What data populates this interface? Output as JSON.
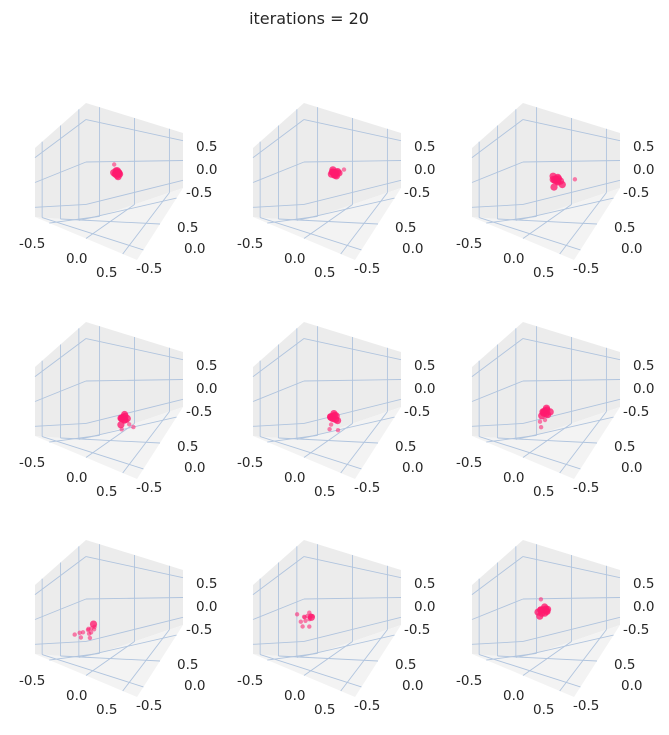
{
  "figure": {
    "suptitle": "iterations = 20",
    "marker_color": "#ff1a6e",
    "pane_color": "#ececec",
    "grid_color": "#b0c4de"
  },
  "chart_data": [
    {
      "type": "scatter",
      "subplot": 1,
      "xticks": [
        "-0.5",
        "0.0",
        "0.5"
      ],
      "yticks": [
        "0.5",
        "0.0",
        "-0.5"
      ],
      "zticks": [
        "0.5",
        "0.0",
        "-0.5"
      ],
      "xlim": [
        -0.8,
        0.8
      ],
      "ylim": [
        -0.8,
        0.8
      ],
      "zlim": [
        -0.8,
        0.8
      ],
      "grid": true,
      "points": [
        {
          "x": 0.02,
          "y": -0.02,
          "z": 0.0
        },
        {
          "x": 0.04,
          "y": 0.0,
          "z": 0.03
        },
        {
          "x": -0.01,
          "y": 0.02,
          "z": -0.02
        },
        {
          "x": 0.06,
          "y": -0.03,
          "z": -0.03
        },
        {
          "x": 0.0,
          "y": 0.04,
          "z": 0.05
        },
        {
          "x": 0.05,
          "y": 0.03,
          "z": -0.01
        },
        {
          "x": -0.02,
          "y": -0.05,
          "z": 0.02
        },
        {
          "x": 0.03,
          "y": 0.05,
          "z": 0.01
        },
        {
          "x": 0.07,
          "y": 0.01,
          "z": 0.04
        },
        {
          "x": -0.1,
          "y": 0.05,
          "z": 0.18
        },
        {
          "x": 0.08,
          "y": -0.02,
          "z": -0.06
        },
        {
          "x": 0.01,
          "y": -0.01,
          "z": 0.07
        },
        {
          "x": 0.04,
          "y": 0.07,
          "z": -0.04
        },
        {
          "x": -0.03,
          "y": 0.01,
          "z": -0.05
        }
      ]
    },
    {
      "type": "scatter",
      "subplot": 2,
      "xticks": [
        "-0.5",
        "0.0",
        "0.5"
      ],
      "yticks": [
        "0.5",
        "0.0",
        "-0.5"
      ],
      "zticks": [
        "0.5",
        "0.0",
        "-0.5"
      ],
      "xlim": [
        -0.8,
        0.8
      ],
      "ylim": [
        -0.8,
        0.8
      ],
      "zlim": [
        -0.8,
        0.8
      ],
      "grid": true,
      "points": [
        {
          "x": 0.0,
          "y": 0.0,
          "z": 0.0
        },
        {
          "x": 0.03,
          "y": 0.02,
          "z": 0.03
        },
        {
          "x": -0.03,
          "y": -0.02,
          "z": 0.02
        },
        {
          "x": 0.05,
          "y": -0.04,
          "z": -0.02
        },
        {
          "x": -0.02,
          "y": 0.05,
          "z": -0.03
        },
        {
          "x": 0.06,
          "y": 0.05,
          "z": 0.05
        },
        {
          "x": -0.05,
          "y": 0.02,
          "z": 0.06
        },
        {
          "x": 0.02,
          "y": -0.06,
          "z": 0.06
        },
        {
          "x": 0.07,
          "y": 0.0,
          "z": -0.05
        },
        {
          "x": -0.04,
          "y": -0.04,
          "z": -0.04
        },
        {
          "x": 0.2,
          "y": 0.1,
          "z": 0.16
        },
        {
          "x": 0.01,
          "y": 0.03,
          "z": -0.07
        },
        {
          "x": 0.08,
          "y": 0.07,
          "z": 0.01
        }
      ]
    },
    {
      "type": "scatter",
      "subplot": 3,
      "xticks": [
        "-0.5",
        "0.0",
        "0.5"
      ],
      "yticks": [
        "0.5",
        "0.0",
        "-0.5"
      ],
      "zticks": [
        "0.5",
        "0.0",
        "-0.5"
      ],
      "xlim": [
        -0.8,
        0.8
      ],
      "ylim": [
        -0.8,
        0.8
      ],
      "zlim": [
        -0.8,
        0.8
      ],
      "grid": true,
      "points": [
        {
          "x": 0.15,
          "y": -0.05,
          "z": -0.1
        },
        {
          "x": 0.18,
          "y": -0.02,
          "z": -0.07
        },
        {
          "x": 0.12,
          "y": -0.08,
          "z": -0.12
        },
        {
          "x": 0.2,
          "y": -0.06,
          "z": -0.14
        },
        {
          "x": 0.14,
          "y": 0.0,
          "z": -0.06
        },
        {
          "x": 0.22,
          "y": -0.1,
          "z": -0.09
        },
        {
          "x": 0.1,
          "y": -0.03,
          "z": -0.15
        },
        {
          "x": 0.17,
          "y": -0.09,
          "z": -0.05
        },
        {
          "x": 0.24,
          "y": -0.02,
          "z": -0.11
        },
        {
          "x": 0.12,
          "y": -0.12,
          "z": -0.08
        },
        {
          "x": 0.55,
          "y": 0.1,
          "z": 0.05
        },
        {
          "x": 0.32,
          "y": -0.05,
          "z": -0.16
        },
        {
          "x": 0.2,
          "y": -0.18,
          "z": -0.24
        },
        {
          "x": 0.05,
          "y": -0.05,
          "z": -0.05
        }
      ]
    },
    {
      "type": "scatter",
      "subplot": 4,
      "xticks": [
        "-0.5",
        "0.0",
        "0.5"
      ],
      "yticks": [
        "0.5",
        "0.0",
        "-0.5"
      ],
      "zticks": [
        "0.5",
        "0.0",
        "-0.5"
      ],
      "xlim": [
        -0.8,
        0.8
      ],
      "ylim": [
        -0.8,
        0.8
      ],
      "zlim": [
        -0.8,
        0.8
      ],
      "grid": true,
      "points": [
        {
          "x": 0.3,
          "y": -0.1,
          "z": -0.55
        },
        {
          "x": 0.33,
          "y": -0.07,
          "z": -0.52
        },
        {
          "x": 0.27,
          "y": -0.13,
          "z": -0.58
        },
        {
          "x": 0.36,
          "y": -0.12,
          "z": -0.6
        },
        {
          "x": 0.29,
          "y": -0.04,
          "z": -0.5
        },
        {
          "x": 0.4,
          "y": -0.15,
          "z": -0.55
        },
        {
          "x": 0.25,
          "y": -0.09,
          "z": -0.62
        },
        {
          "x": 0.38,
          "y": -0.05,
          "z": -0.57
        },
        {
          "x": 0.34,
          "y": -0.17,
          "z": -0.53
        },
        {
          "x": 0.42,
          "y": -0.1,
          "z": -0.6
        },
        {
          "x": 0.7,
          "y": -0.2,
          "z": -0.6
        },
        {
          "x": 0.45,
          "y": -0.3,
          "z": -0.75
        },
        {
          "x": 0.35,
          "y": -0.22,
          "z": -0.7
        },
        {
          "x": 0.5,
          "y": -0.12,
          "z": -0.65
        }
      ]
    },
    {
      "type": "scatter",
      "subplot": 5,
      "xticks": [
        "-0.5",
        "0.0",
        "0.5"
      ],
      "yticks": [
        "0.5",
        "0.0",
        "-0.5"
      ],
      "zticks": [
        "0.5",
        "0.0",
        "-0.5"
      ],
      "xlim": [
        -0.8,
        0.8
      ],
      "ylim": [
        -0.8,
        0.8
      ],
      "zlim": [
        -0.8,
        0.8
      ],
      "grid": true,
      "points": [
        {
          "x": 0.1,
          "y": -0.15,
          "z": -0.6
        },
        {
          "x": 0.13,
          "y": -0.12,
          "z": -0.57
        },
        {
          "x": 0.07,
          "y": -0.18,
          "z": -0.63
        },
        {
          "x": 0.16,
          "y": -0.2,
          "z": -0.62
        },
        {
          "x": 0.09,
          "y": -0.1,
          "z": -0.55
        },
        {
          "x": 0.18,
          "y": -0.14,
          "z": -0.66
        },
        {
          "x": 0.05,
          "y": -0.13,
          "z": -0.68
        },
        {
          "x": 0.14,
          "y": -0.08,
          "z": -0.6
        },
        {
          "x": 0.11,
          "y": -0.22,
          "z": -0.58
        },
        {
          "x": 0.2,
          "y": -0.1,
          "z": -0.7
        },
        {
          "x": 0.2,
          "y": -0.35,
          "z": -0.85
        },
        {
          "x": 0.4,
          "y": -0.3,
          "z": -0.8
        },
        {
          "x": 0.15,
          "y": -0.25,
          "z": -0.78
        }
      ]
    },
    {
      "type": "scatter",
      "subplot": 6,
      "xticks": [
        "-0.5",
        "0.0",
        "0.5"
      ],
      "yticks": [
        "0.5",
        "0.0",
        "-0.5"
      ],
      "zticks": [
        "0.5",
        "0.0",
        "-0.5"
      ],
      "xlim": [
        -0.8,
        0.8
      ],
      "ylim": [
        -0.8,
        0.8
      ],
      "zlim": [
        -0.8,
        0.8
      ],
      "grid": true,
      "points": [
        {
          "x": -0.05,
          "y": -0.2,
          "z": -0.5
        },
        {
          "x": -0.02,
          "y": -0.17,
          "z": -0.47
        },
        {
          "x": -0.08,
          "y": -0.23,
          "z": -0.53
        },
        {
          "x": 0.0,
          "y": -0.22,
          "z": -0.55
        },
        {
          "x": -0.06,
          "y": -0.14,
          "z": -0.45
        },
        {
          "x": 0.02,
          "y": -0.19,
          "z": -0.58
        },
        {
          "x": -0.1,
          "y": -0.18,
          "z": -0.6
        },
        {
          "x": -0.03,
          "y": -0.26,
          "z": -0.5
        },
        {
          "x": 0.03,
          "y": -0.12,
          "z": -0.52
        },
        {
          "x": -0.07,
          "y": -0.28,
          "z": -0.62
        },
        {
          "x": -0.02,
          "y": -0.35,
          "z": -0.9
        },
        {
          "x": -0.1,
          "y": -0.3,
          "z": -0.8
        },
        {
          "x": 0.0,
          "y": -0.25,
          "z": -0.72
        }
      ]
    },
    {
      "type": "scatter",
      "subplot": 7,
      "xticks": [
        "-0.5",
        "0.0",
        "0.5"
      ],
      "yticks": [
        "0.5",
        "0.0",
        "-0.5"
      ],
      "zticks": [
        "0.5",
        "0.0",
        "-0.5"
      ],
      "xlim": [
        -0.8,
        0.8
      ],
      "ylim": [
        -0.8,
        0.8
      ],
      "zlim": [
        -0.8,
        0.8
      ],
      "grid": true,
      "points": [
        {
          "x": -0.35,
          "y": -0.4,
          "z": -0.55
        },
        {
          "x": -0.3,
          "y": -0.35,
          "z": -0.5
        },
        {
          "x": -0.4,
          "y": -0.45,
          "z": -0.6
        },
        {
          "x": -0.25,
          "y": -0.42,
          "z": -0.52
        },
        {
          "x": -0.38,
          "y": -0.3,
          "z": -0.48
        },
        {
          "x": -0.28,
          "y": -0.48,
          "z": -0.6
        },
        {
          "x": -0.45,
          "y": -0.38,
          "z": -0.62
        },
        {
          "x": -0.32,
          "y": -0.5,
          "z": -0.65
        },
        {
          "x": -0.5,
          "y": -0.5,
          "z": -0.7
        },
        {
          "x": -0.55,
          "y": -0.55,
          "z": -0.72
        },
        {
          "x": -0.65,
          "y": -0.6,
          "z": -0.8
        },
        {
          "x": -0.45,
          "y": -0.62,
          "z": -0.78
        },
        {
          "x": -0.25,
          "y": -0.55,
          "z": -0.72
        }
      ]
    },
    {
      "type": "scatter",
      "subplot": 8,
      "xticks": [
        "-0.5",
        "0.0",
        "0.5"
      ],
      "yticks": [
        "0.5",
        "0.0",
        "-0.5"
      ],
      "zticks": [
        "0.5",
        "0.0",
        "-0.5"
      ],
      "xlim": [
        -0.8,
        0.8
      ],
      "ylim": [
        -0.8,
        0.8
      ],
      "zlim": [
        -0.8,
        0.8
      ],
      "grid": true,
      "points": [
        {
          "x": -0.5,
          "y": -0.3,
          "z": -0.3
        },
        {
          "x": -0.45,
          "y": -0.25,
          "z": -0.28
        },
        {
          "x": -0.55,
          "y": -0.35,
          "z": -0.33
        },
        {
          "x": -0.42,
          "y": -0.32,
          "z": -0.35
        },
        {
          "x": -0.52,
          "y": -0.22,
          "z": -0.25
        },
        {
          "x": -0.4,
          "y": -0.28,
          "z": -0.3
        },
        {
          "x": -0.58,
          "y": -0.3,
          "z": -0.38
        },
        {
          "x": -0.48,
          "y": -0.38,
          "z": -0.4
        },
        {
          "x": -0.44,
          "y": -0.2,
          "z": -0.32
        },
        {
          "x": -0.38,
          "y": -0.35,
          "z": -0.27
        },
        {
          "x": -0.85,
          "y": -0.25,
          "z": -0.45
        },
        {
          "x": -0.5,
          "y": -0.45,
          "z": -0.55
        },
        {
          "x": -0.35,
          "y": -0.4,
          "z": -0.5
        },
        {
          "x": -0.6,
          "y": -0.4,
          "z": -0.48
        }
      ]
    },
    {
      "type": "scatter",
      "subplot": 9,
      "xticks": [
        "-0.5",
        "0.0",
        "0.5"
      ],
      "yticks": [
        "0.5",
        "0.0",
        "-0.5"
      ],
      "zticks": [
        "0.5",
        "0.0",
        "-0.5"
      ],
      "xlim": [
        -0.8,
        0.8
      ],
      "ylim": [
        -0.8,
        0.8
      ],
      "zlim": [
        -0.8,
        0.8
      ],
      "grid": true,
      "points": [
        {
          "x": -0.2,
          "y": -0.1,
          "z": -0.05
        },
        {
          "x": -0.15,
          "y": -0.06,
          "z": -0.02
        },
        {
          "x": -0.25,
          "y": -0.12,
          "z": -0.08
        },
        {
          "x": -0.12,
          "y": -0.13,
          "z": -0.1
        },
        {
          "x": -0.22,
          "y": -0.03,
          "z": -0.01
        },
        {
          "x": -0.1,
          "y": -0.08,
          "z": -0.06
        },
        {
          "x": -0.28,
          "y": -0.08,
          "z": -0.1
        },
        {
          "x": -0.18,
          "y": -0.16,
          "z": -0.12
        },
        {
          "x": -0.14,
          "y": -0.02,
          "z": -0.04
        },
        {
          "x": -0.08,
          "y": -0.12,
          "z": -0.02
        },
        {
          "x": -0.45,
          "y": 0.1,
          "z": 0.05
        },
        {
          "x": -0.2,
          "y": -0.2,
          "z": -0.2
        },
        {
          "x": -0.3,
          "y": -0.15,
          "z": -0.15
        }
      ]
    }
  ]
}
